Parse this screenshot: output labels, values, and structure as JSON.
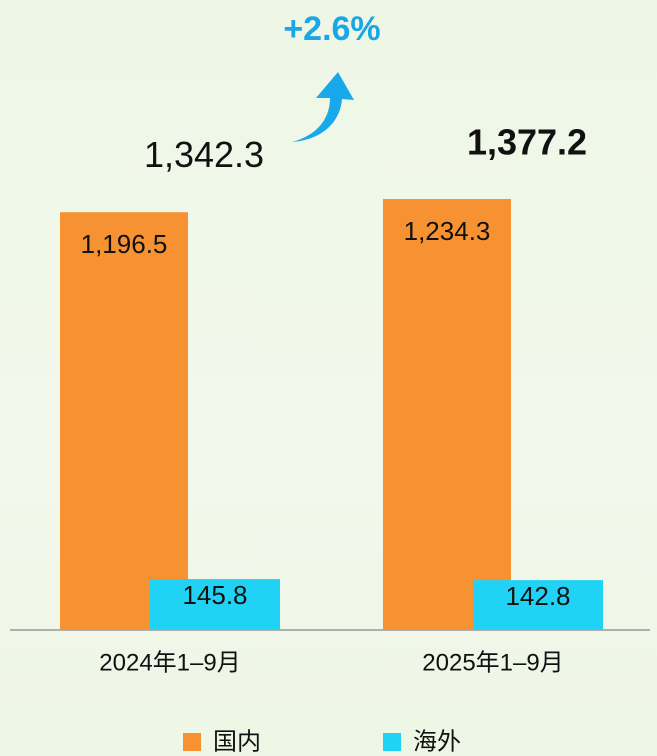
{
  "chart_data": {
    "type": "bar",
    "categories": [
      "2024年1–9月",
      "2025年1–9月"
    ],
    "series": [
      {
        "name": "国内",
        "color": "#f79232",
        "values": [
          1196.5,
          1234.3
        ],
        "value_labels": [
          "1,196.5",
          "1,234.3"
        ]
      },
      {
        "name": "海外",
        "color": "#20d3f5",
        "values": [
          145.8,
          142.8
        ],
        "value_labels": [
          "145.8",
          "142.8"
        ]
      }
    ],
    "totals": {
      "values": [
        1342.3,
        1377.2
      ],
      "value_labels": [
        "1,342.3",
        "1,377.2"
      ]
    },
    "annotation": "+2.6%"
  }
}
